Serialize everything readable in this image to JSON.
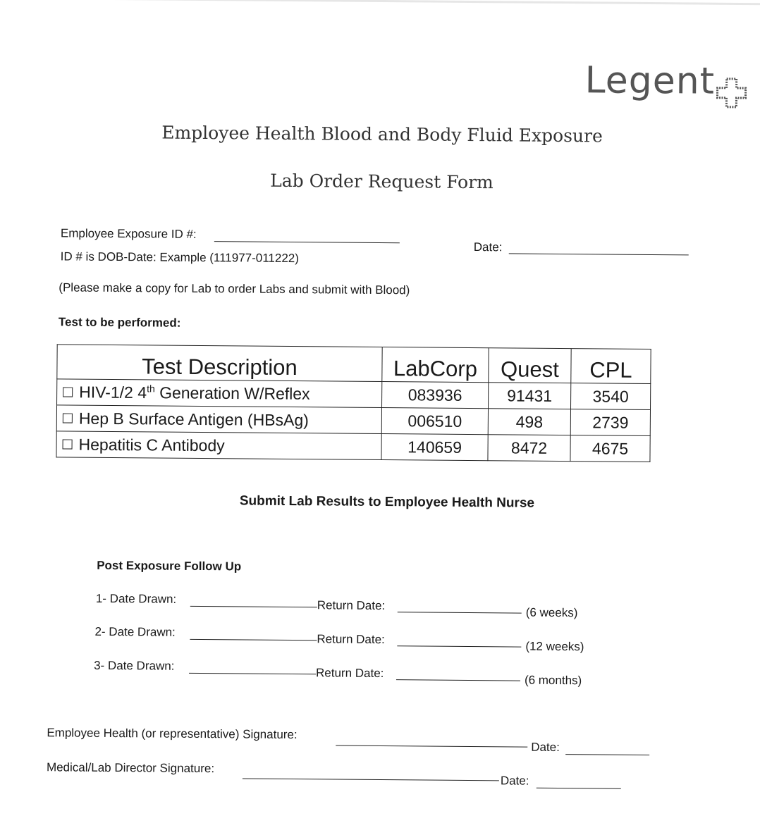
{
  "logo": {
    "text": "Legent",
    "icon": "cross-icon"
  },
  "title": {
    "line1": "Employee Health Blood and Body Fluid Exposure",
    "line2": "Lab Order Request Form"
  },
  "header": {
    "exposure_id_label": "Employee Exposure ID #:",
    "exposure_id_value": "",
    "id_note": "ID # is DOB-Date: Example (111977-011222)",
    "date_label": "Date:",
    "date_value": "",
    "copy_note": "(Please make a copy for Lab to order Labs and submit with Blood)",
    "tests_heading": "Test to be performed:"
  },
  "table": {
    "columns": [
      "Test Description",
      "LabCorp",
      "Quest",
      "CPL"
    ],
    "rows": [
      {
        "desc_pre": "HIV-1/2 4",
        "desc_sup": "th",
        "desc_post": " Generation W/Reflex",
        "checked": false,
        "labcorp": "083936",
        "quest": "91431",
        "cpl": "3540"
      },
      {
        "desc_pre": "Hep B Surface Antigen (HBsAg)",
        "desc_sup": "",
        "desc_post": "",
        "checked": false,
        "labcorp": "006510",
        "quest": "498",
        "cpl": "2739"
      },
      {
        "desc_pre": "Hepatitis C Antibody",
        "desc_sup": "",
        "desc_post": "",
        "checked": false,
        "labcorp": "140659",
        "quest": "8472",
        "cpl": "4675"
      }
    ]
  },
  "submit_note": "Submit Lab Results to Employee Health Nurse",
  "followup": {
    "heading": "Post Exposure Follow Up",
    "rows": [
      {
        "drawn_label": "1- Date Drawn:",
        "return_label": "Return Date:",
        "interval": "(6 weeks)"
      },
      {
        "drawn_label": "2- Date Drawn:",
        "return_label": "Return Date:",
        "interval": "(12 weeks)"
      },
      {
        "drawn_label": "3- Date Drawn:",
        "return_label": "Return Date:",
        "interval": "(6 months)"
      }
    ]
  },
  "signatures": {
    "employee_health_label": "Employee Health (or representative) Signature:",
    "director_label": "Medical/Lab Director Signature:",
    "date_label": "Date:"
  }
}
